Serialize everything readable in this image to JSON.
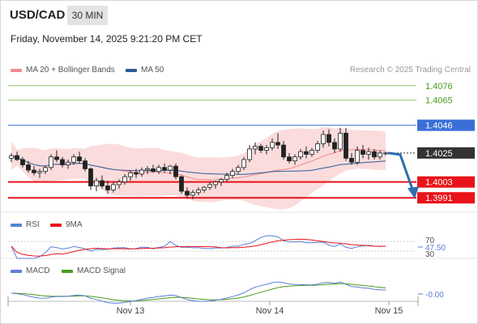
{
  "header": {
    "symbol": "USD/CAD",
    "timeframe": "30 MIN",
    "datetime": "Friday, November 14, 2025 9:21:20 PM CET"
  },
  "main_panel": {
    "legend": [
      {
        "label": "MA 20 + Bollinger Bands",
        "color": "#f08a8a"
      },
      {
        "label": "MA 50",
        "color": "#2e5c9a"
      }
    ],
    "credit": "Research © 2025 Trading Central",
    "levels": [
      {
        "label": "1.4076",
        "value": 1.4076,
        "kind": "green"
      },
      {
        "label": "1.4065",
        "value": 1.4065,
        "kind": "green"
      },
      {
        "label": "1.4046",
        "value": 1.4046,
        "kind": "blue"
      },
      {
        "label": "1.4025",
        "value": 1.4025,
        "kind": "current"
      },
      {
        "label": "1.4003",
        "value": 1.4003,
        "kind": "red"
      },
      {
        "label": "1.3991",
        "value": 1.3991,
        "kind": "red"
      }
    ],
    "colors": {
      "green": "#8cc46a",
      "blue": "#3a6fd8",
      "red": "#e8141a",
      "current": "#333333",
      "candle_up": "#ffffff",
      "candle_down": "#222222",
      "band_fill": "#fbdcdc"
    }
  },
  "rsi_panel": {
    "legend": [
      {
        "label": "RSI",
        "color": "#5b7fd6"
      },
      {
        "label": "9MA",
        "color": "#e8141a"
      }
    ],
    "levels": [
      {
        "label": "70",
        "value": 70
      },
      {
        "label": "47.50",
        "value": 47.5,
        "current": true
      },
      {
        "label": "30",
        "value": 30
      }
    ]
  },
  "macd_panel": {
    "legend": [
      {
        "label": "MACD",
        "color": "#5b7fd6"
      },
      {
        "label": "MACD Signal",
        "color": "#4c9a1a"
      }
    ],
    "current_label": "-0.00"
  },
  "xaxis": {
    "ticks": [
      "Nov 13",
      "Nov 14",
      "Nov 15"
    ]
  },
  "chart_data": {
    "type": "candlestick",
    "ylim": [
      1.3985,
      1.4082
    ],
    "candles": [
      [
        1.4021,
        1.4025,
        1.4018,
        1.4023
      ],
      [
        1.4023,
        1.4026,
        1.4019,
        1.402
      ],
      [
        1.402,
        1.4022,
        1.4014,
        1.4016
      ],
      [
        1.4016,
        1.4019,
        1.401,
        1.4012
      ],
      [
        1.4012,
        1.4015,
        1.4008,
        1.401
      ],
      [
        1.401,
        1.4013,
        1.4006,
        1.4011
      ],
      [
        1.4011,
        1.4015,
        1.4009,
        1.4014
      ],
      [
        1.4014,
        1.4024,
        1.4012,
        1.4022
      ],
      [
        1.4022,
        1.4027,
        1.4018,
        1.402
      ],
      [
        1.402,
        1.4022,
        1.4014,
        1.4016
      ],
      [
        1.4016,
        1.402,
        1.4013,
        1.4018
      ],
      [
        1.4018,
        1.4024,
        1.4016,
        1.4022
      ],
      [
        1.4022,
        1.4026,
        1.4017,
        1.4019
      ],
      [
        1.4019,
        1.4021,
        1.4011,
        1.4013
      ],
      [
        1.4013,
        1.4014,
        1.3997,
        1.4
      ],
      [
        1.4,
        1.4006,
        1.3996,
        1.4004
      ],
      [
        1.4004,
        1.4008,
        1.3998,
        1.4
      ],
      [
        1.4,
        1.4004,
        1.3994,
        1.3997
      ],
      [
        1.3997,
        1.4003,
        1.3995,
        1.4001
      ],
      [
        1.4001,
        1.4005,
        1.3998,
        1.4003
      ],
      [
        1.4003,
        1.4009,
        1.4001,
        1.4007
      ],
      [
        1.4007,
        1.4012,
        1.4004,
        1.401
      ],
      [
        1.401,
        1.4013,
        1.4006,
        1.4009
      ],
      [
        1.4009,
        1.4014,
        1.4007,
        1.4012
      ],
      [
        1.4012,
        1.4015,
        1.4009,
        1.4013
      ],
      [
        1.4013,
        1.4016,
        1.401,
        1.4011
      ],
      [
        1.4011,
        1.4016,
        1.4009,
        1.4014
      ],
      [
        1.4014,
        1.4017,
        1.401,
        1.4012
      ],
      [
        1.4012,
        1.4016,
        1.4009,
        1.4015
      ],
      [
        1.4015,
        1.4017,
        1.4005,
        1.4007
      ],
      [
        1.4007,
        1.4008,
        1.3994,
        1.3996
      ],
      [
        1.3996,
        1.3999,
        1.3991,
        1.3993
      ],
      [
        1.3993,
        1.3997,
        1.399,
        1.3995
      ],
      [
        1.3995,
        1.3999,
        1.3993,
        1.3997
      ],
      [
        1.3997,
        1.4,
        1.3995,
        1.3999
      ],
      [
        1.3999,
        1.4003,
        1.3997,
        1.4001
      ],
      [
        1.4001,
        1.4004,
        1.3998,
        1.4003
      ],
      [
        1.4003,
        1.4006,
        1.4,
        1.4005
      ],
      [
        1.4005,
        1.401,
        1.4003,
        1.4008
      ],
      [
        1.4008,
        1.4013,
        1.4006,
        1.4011
      ],
      [
        1.4011,
        1.4016,
        1.4009,
        1.4014
      ],
      [
        1.4014,
        1.4022,
        1.4012,
        1.402
      ],
      [
        1.402,
        1.4031,
        1.4018,
        1.4028
      ],
      [
        1.4028,
        1.4033,
        1.4024,
        1.403
      ],
      [
        1.403,
        1.4032,
        1.4025,
        1.4027
      ],
      [
        1.4027,
        1.4031,
        1.4024,
        1.4029
      ],
      [
        1.4029,
        1.4036,
        1.4027,
        1.4033
      ],
      [
        1.4033,
        1.404,
        1.4028,
        1.4031
      ],
      [
        1.4031,
        1.4034,
        1.402,
        1.4022
      ],
      [
        1.4022,
        1.4025,
        1.4017,
        1.4019
      ],
      [
        1.4019,
        1.4024,
        1.4016,
        1.4022
      ],
      [
        1.4022,
        1.4028,
        1.402,
        1.4026
      ],
      [
        1.4026,
        1.403,
        1.4021,
        1.4024
      ],
      [
        1.4024,
        1.4029,
        1.4022,
        1.4027
      ],
      [
        1.4027,
        1.4034,
        1.4025,
        1.4032
      ],
      [
        1.4032,
        1.4042,
        1.4029,
        1.4039
      ],
      [
        1.4039,
        1.4043,
        1.403,
        1.4033
      ],
      [
        1.4033,
        1.4036,
        1.4025,
        1.4028
      ],
      [
        1.4028,
        1.4044,
        1.4026,
        1.404
      ],
      [
        1.404,
        1.4044,
        1.4019,
        1.4021
      ],
      [
        1.4021,
        1.4025,
        1.4016,
        1.4018
      ],
      [
        1.4018,
        1.403,
        1.4016,
        1.4027
      ],
      [
        1.4027,
        1.4031,
        1.4021,
        1.4024
      ],
      [
        1.4024,
        1.4029,
        1.402,
        1.4026
      ],
      [
        1.4026,
        1.4028,
        1.402,
        1.4022
      ],
      [
        1.4022,
        1.4027,
        1.402,
        1.4025
      ],
      [
        1.4025,
        1.4026,
        1.4023,
        1.4025
      ]
    ]
  }
}
